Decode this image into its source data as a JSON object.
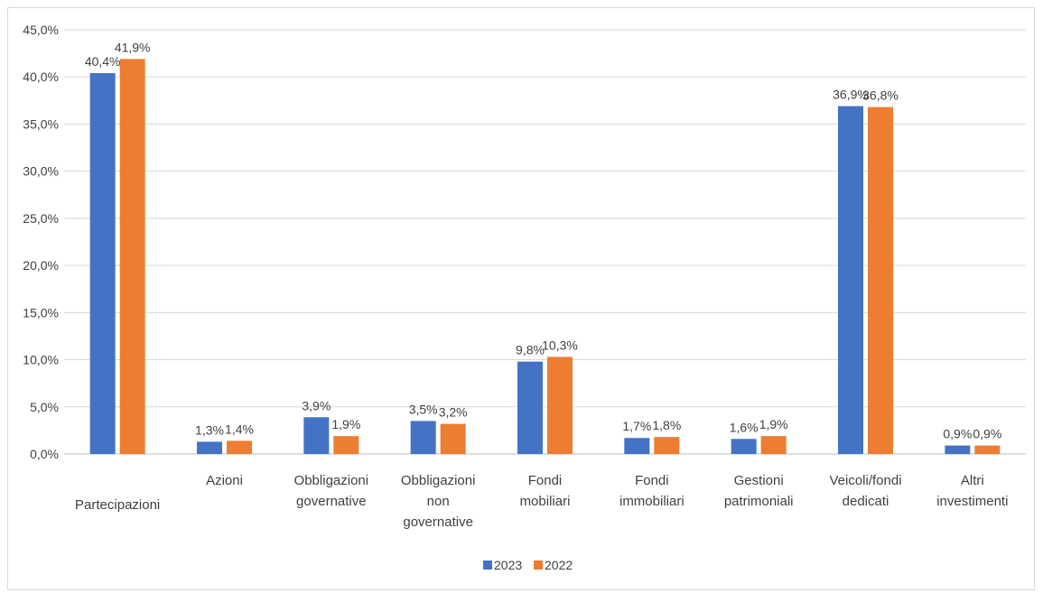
{
  "chart_data": {
    "type": "bar",
    "title": "",
    "xlabel": "",
    "ylabel": "",
    "ylim": [
      0,
      45
    ],
    "y_ticks": [
      "0,0%",
      "5,0%",
      "10,0%",
      "15,0%",
      "20,0%",
      "25,0%",
      "30,0%",
      "35,0%",
      "40,0%",
      "45,0%"
    ],
    "y_tick_values": [
      0,
      5,
      10,
      15,
      20,
      25,
      30,
      35,
      40,
      45
    ],
    "grid": true,
    "legend_position": "bottom",
    "categories": [
      [
        "Partecipazioni"
      ],
      [
        "Azioni"
      ],
      [
        "Obbligazioni",
        "governative"
      ],
      [
        "Obbligazioni",
        "non",
        "governative"
      ],
      [
        "Fondi",
        "mobiliari"
      ],
      [
        "Fondi",
        "immobiliari"
      ],
      [
        "Gestioni",
        "patrimoniali"
      ],
      [
        "Veicoli/fondi",
        "dedicati"
      ],
      [
        "Altri",
        "investimenti"
      ]
    ],
    "series": [
      {
        "name": "2023",
        "color": "#4472c4",
        "values": [
          40.4,
          1.3,
          3.9,
          3.5,
          9.8,
          1.7,
          1.6,
          36.9,
          0.9
        ],
        "labels": [
          "40,4%",
          "1,3%",
          "3,9%",
          "3,5%",
          "9,8%",
          "1,7%",
          "1,6%",
          "36,9%",
          "0,9%"
        ]
      },
      {
        "name": "2022",
        "color": "#ed7d31",
        "values": [
          41.9,
          1.4,
          1.9,
          3.2,
          10.3,
          1.8,
          1.9,
          36.8,
          0.9
        ],
        "labels": [
          "41,9%",
          "1,4%",
          "1,9%",
          "3,2%",
          "10,3%",
          "1,8%",
          "1,9%",
          "36,8%",
          "0,9%"
        ]
      }
    ]
  }
}
